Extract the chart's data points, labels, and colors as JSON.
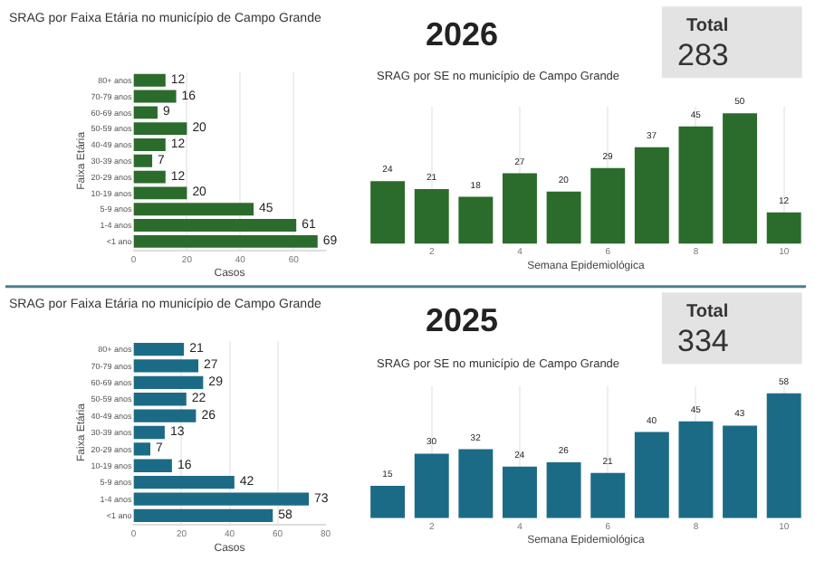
{
  "chart_data": [
    {
      "type": "bar",
      "orientation": "horizontal",
      "title": "SRAG por Faixa Etária no município de Campo Grande",
      "xlabel": "Casos",
      "ylabel": "Faixa Etária",
      "categories": [
        "80+ anos",
        "70-79 anos",
        "60-69 anos",
        "50-59 anos",
        "40-49 anos",
        "30-39 anos",
        "20-29 anos",
        "10-19 anos",
        "5-9 anos",
        "1-4 anos",
        "<1 ano"
      ],
      "values": [
        12,
        16,
        9,
        20,
        12,
        7,
        12,
        20,
        45,
        61,
        69
      ],
      "color": "#2b6b2b",
      "xlim": [
        0,
        72
      ],
      "xticks": [
        0,
        20,
        40,
        60
      ],
      "grid": "x",
      "data_labels": true
    },
    {
      "type": "other",
      "title": "2026"
    },
    {
      "type": "other",
      "title": "Total",
      "annotations": [
        "283"
      ]
    },
    {
      "type": "bar",
      "title": "SRAG por SE no município de Campo Grande",
      "xlabel": "Semana Epidemiológica",
      "x": [
        1,
        2,
        3,
        4,
        5,
        6,
        7,
        8,
        9,
        10
      ],
      "values": [
        24,
        21,
        18,
        27,
        20,
        29,
        37,
        45,
        50,
        12
      ],
      "color": "#2b6b2b",
      "xlim": [
        0.5,
        10.5
      ],
      "xticks": [
        2,
        4,
        6,
        8,
        10
      ],
      "grid": "x",
      "tick_labels": "x",
      "data_labels": true
    },
    {
      "type": "bar",
      "orientation": "horizontal",
      "title": "SRAG por Faixa Etária no município de Campo Grande",
      "xlabel": "Casos",
      "ylabel": "Faixa Etária",
      "categories": [
        "80+ anos",
        "70-79 anos",
        "60-69 anos",
        "50-59 anos",
        "40-49 anos",
        "30-39 anos",
        "20-29 anos",
        "10-19 anos",
        "5-9 anos",
        "1-4 anos",
        "<1 ano"
      ],
      "values": [
        21,
        27,
        29,
        22,
        26,
        13,
        7,
        16,
        42,
        73,
        58
      ],
      "color": "#1c6b86",
      "xlim": [
        0,
        80
      ],
      "xticks": [
        0,
        20,
        40,
        60,
        80
      ],
      "grid": "x",
      "data_labels": true
    },
    {
      "type": "other",
      "title": "2025"
    },
    {
      "type": "other",
      "title": "Total",
      "annotations": [
        "334"
      ]
    },
    {
      "type": "bar",
      "title": "SRAG por SE no município de Campo Grande",
      "xlabel": "Semana Epidemiológica",
      "x": [
        1,
        2,
        3,
        4,
        5,
        6,
        7,
        8,
        9,
        10
      ],
      "values": [
        15,
        30,
        32,
        24,
        26,
        21,
        40,
        45,
        43,
        58
      ],
      "color": "#1c6b86",
      "xlim": [
        0.5,
        10.5
      ],
      "xticks": [
        2,
        4,
        6,
        8,
        10
      ],
      "grid": "x",
      "tick_labels": "x",
      "data_labels": true
    }
  ]
}
